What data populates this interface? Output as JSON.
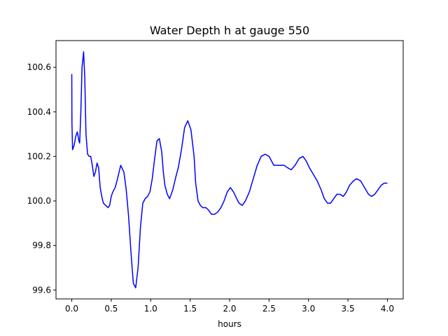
{
  "chart_data": {
    "type": "line",
    "title": "Water Depth h at gauge 550",
    "xlabel": "hours",
    "ylabel": "",
    "xlim": [
      -0.2,
      4.2
    ],
    "ylim": [
      99.56,
      100.72
    ],
    "xticks": [
      0.0,
      0.5,
      1.0,
      1.5,
      2.0,
      2.5,
      3.0,
      3.5,
      4.0
    ],
    "xtick_labels": [
      "0.0",
      "0.5",
      "1.0",
      "1.5",
      "2.0",
      "2.5",
      "3.0",
      "3.5",
      "4.0"
    ],
    "yticks": [
      99.6,
      99.8,
      100.0,
      100.2,
      100.4,
      100.6
    ],
    "ytick_labels": [
      "99.6",
      "99.8",
      "100.0",
      "100.2",
      "100.4",
      "100.6"
    ],
    "grid": false,
    "legend": "none",
    "colors": {
      "line": "#0000ff",
      "axes": "#000000",
      "background": "#ffffff"
    },
    "series": [
      {
        "x": [
          0.0,
          0.002,
          0.01,
          0.03,
          0.05,
          0.07,
          0.08,
          0.09,
          0.1,
          0.115,
          0.13,
          0.15,
          0.165,
          0.18,
          0.2,
          0.22,
          0.24,
          0.26,
          0.28,
          0.3,
          0.32,
          0.34,
          0.36,
          0.38,
          0.4,
          0.43,
          0.46,
          0.48,
          0.5,
          0.52,
          0.55,
          0.58,
          0.62,
          0.66,
          0.69,
          0.72,
          0.75,
          0.78,
          0.81,
          0.84,
          0.87,
          0.9,
          0.93,
          0.96,
          0.99,
          1.02,
          1.05,
          1.08,
          1.11,
          1.14,
          1.16,
          1.18,
          1.21,
          1.24,
          1.28,
          1.32,
          1.35,
          1.39,
          1.43,
          1.47,
          1.51,
          1.55,
          1.57,
          1.6,
          1.63,
          1.66,
          1.7,
          1.73,
          1.77,
          1.81,
          1.85,
          1.89,
          1.93,
          1.97,
          2.01,
          2.05,
          2.09,
          2.12,
          2.16,
          2.2,
          2.25,
          2.3,
          2.35,
          2.4,
          2.45,
          2.5,
          2.53,
          2.56,
          2.6,
          2.64,
          2.69,
          2.73,
          2.78,
          2.83,
          2.88,
          2.93,
          2.97,
          3.01,
          3.06,
          3.11,
          3.16,
          3.2,
          3.24,
          3.28,
          3.32,
          3.36,
          3.4,
          3.44,
          3.48,
          3.52,
          3.57,
          3.61,
          3.66,
          3.71,
          3.76,
          3.8,
          3.84,
          3.88,
          3.92,
          3.96,
          4.0
        ],
        "y": [
          100.57,
          100.35,
          100.23,
          100.25,
          100.29,
          100.31,
          100.29,
          100.27,
          100.26,
          100.4,
          100.6,
          100.67,
          100.55,
          100.3,
          100.21,
          100.2,
          100.2,
          100.16,
          100.11,
          100.13,
          100.17,
          100.15,
          100.06,
          100.02,
          99.99,
          99.98,
          99.97,
          99.98,
          100.02,
          100.04,
          100.06,
          100.1,
          100.16,
          100.13,
          100.05,
          99.93,
          99.77,
          99.63,
          99.61,
          99.7,
          99.88,
          99.99,
          100.01,
          100.02,
          100.04,
          100.1,
          100.19,
          100.27,
          100.28,
          100.22,
          100.13,
          100.07,
          100.03,
          100.01,
          100.05,
          100.11,
          100.15,
          100.23,
          100.33,
          100.36,
          100.32,
          100.2,
          100.08,
          100.0,
          99.98,
          99.97,
          99.97,
          99.96,
          99.94,
          99.94,
          99.95,
          99.97,
          100.0,
          100.04,
          100.06,
          100.04,
          100.01,
          99.99,
          99.98,
          100.0,
          100.04,
          100.1,
          100.16,
          100.2,
          100.21,
          100.2,
          100.18,
          100.16,
          100.16,
          100.16,
          100.16,
          100.15,
          100.14,
          100.16,
          100.19,
          100.2,
          100.18,
          100.15,
          100.12,
          100.09,
          100.05,
          100.01,
          99.99,
          99.99,
          100.01,
          100.03,
          100.03,
          100.02,
          100.04,
          100.07,
          100.09,
          100.1,
          100.09,
          100.06,
          100.03,
          100.02,
          100.03,
          100.05,
          100.07,
          100.08,
          100.08
        ]
      }
    ]
  }
}
